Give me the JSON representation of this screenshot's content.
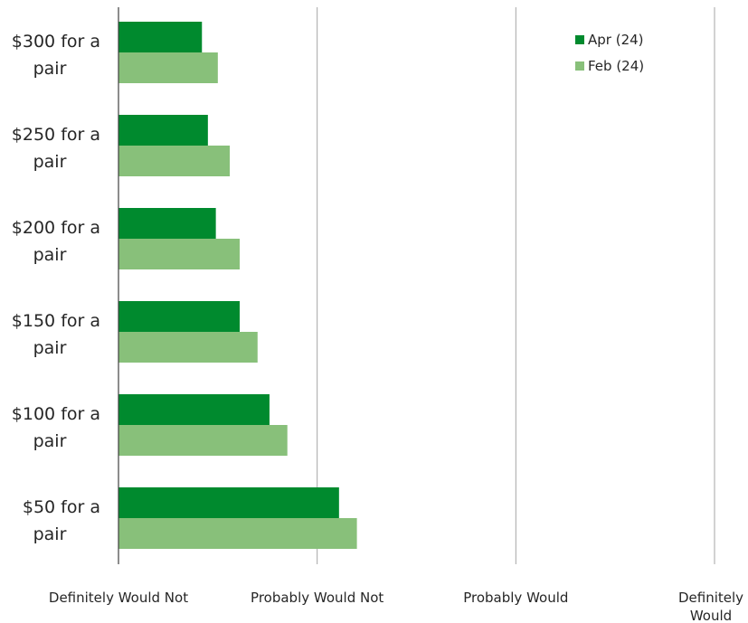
{
  "chart_data": {
    "type": "bar",
    "orientation": "horizontal",
    "title": "",
    "xlabel": "",
    "ylabel": "",
    "categories": [
      "$300 for a pair",
      "$250 for a pair",
      "$200 for a pair",
      "$150 for a pair",
      "$100 for a pair",
      "$50 for a pair"
    ],
    "category_lines": [
      [
        "$300 for a",
        "pair"
      ],
      [
        "$250 for a",
        "pair"
      ],
      [
        "$200 for a",
        "pair"
      ],
      [
        "$150 for a",
        "pair"
      ],
      [
        "$100 for a",
        "pair"
      ],
      [
        "$50 for a",
        "pair"
      ]
    ],
    "series": [
      {
        "name": "Apr (24)",
        "color": "#008a2e",
        "values": [
          1.42,
          1.45,
          1.49,
          1.61,
          1.76,
          2.11
        ]
      },
      {
        "name": "Feb (24)",
        "color": "#88c07a",
        "values": [
          1.5,
          1.56,
          1.61,
          1.7,
          1.85,
          2.2
        ]
      }
    ],
    "xlim": [
      1,
      4
    ],
    "x_ticks": [
      1,
      2,
      3,
      4
    ],
    "x_tick_labels": [
      [
        "Definitely Would Not"
      ],
      [
        "Probably Would Not"
      ],
      [
        "Probably Would"
      ],
      [
        "Definitely",
        "Would"
      ]
    ],
    "grid": true,
    "legend": "top-right"
  }
}
